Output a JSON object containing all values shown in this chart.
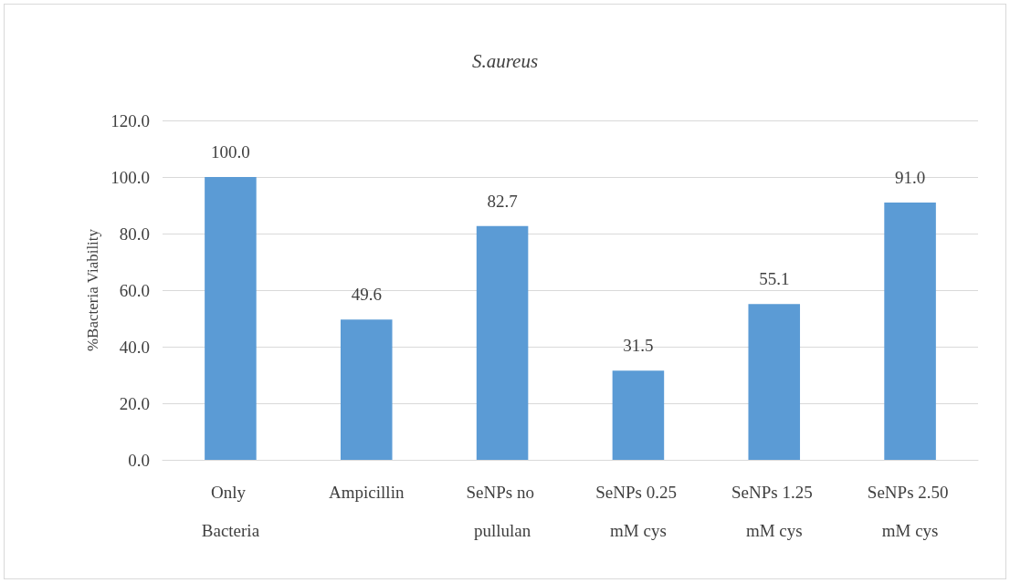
{
  "chart_data": {
    "type": "bar",
    "title": "S.aureus",
    "ylabel": "%Bacteria Viability",
    "categories": [
      "Only Bacteria",
      "Ampicillin",
      "SeNPs no pullulan",
      "SeNPs 0.25 mM cys",
      "SeNPs 1.25 mM cys",
      "SeNPs 2.50 mM cys"
    ],
    "values": [
      100.0,
      49.6,
      82.7,
      31.5,
      55.1,
      91.0
    ],
    "value_labels": [
      "100.0",
      "49.6",
      "82.7",
      "31.5",
      "55.1",
      "91.0"
    ],
    "color": "#5b9bd5",
    "ylim": [
      0,
      120
    ],
    "yticks": [
      {
        "value": 0,
        "label": "0.0"
      },
      {
        "value": 20,
        "label": "20.0"
      },
      {
        "value": 40,
        "label": "40.0"
      },
      {
        "value": 60,
        "label": "60.0"
      },
      {
        "value": 80,
        "label": "80.0"
      },
      {
        "value": 100,
        "label": "100.0"
      },
      {
        "value": 120,
        "label": "120.0"
      }
    ],
    "grid": "y"
  }
}
